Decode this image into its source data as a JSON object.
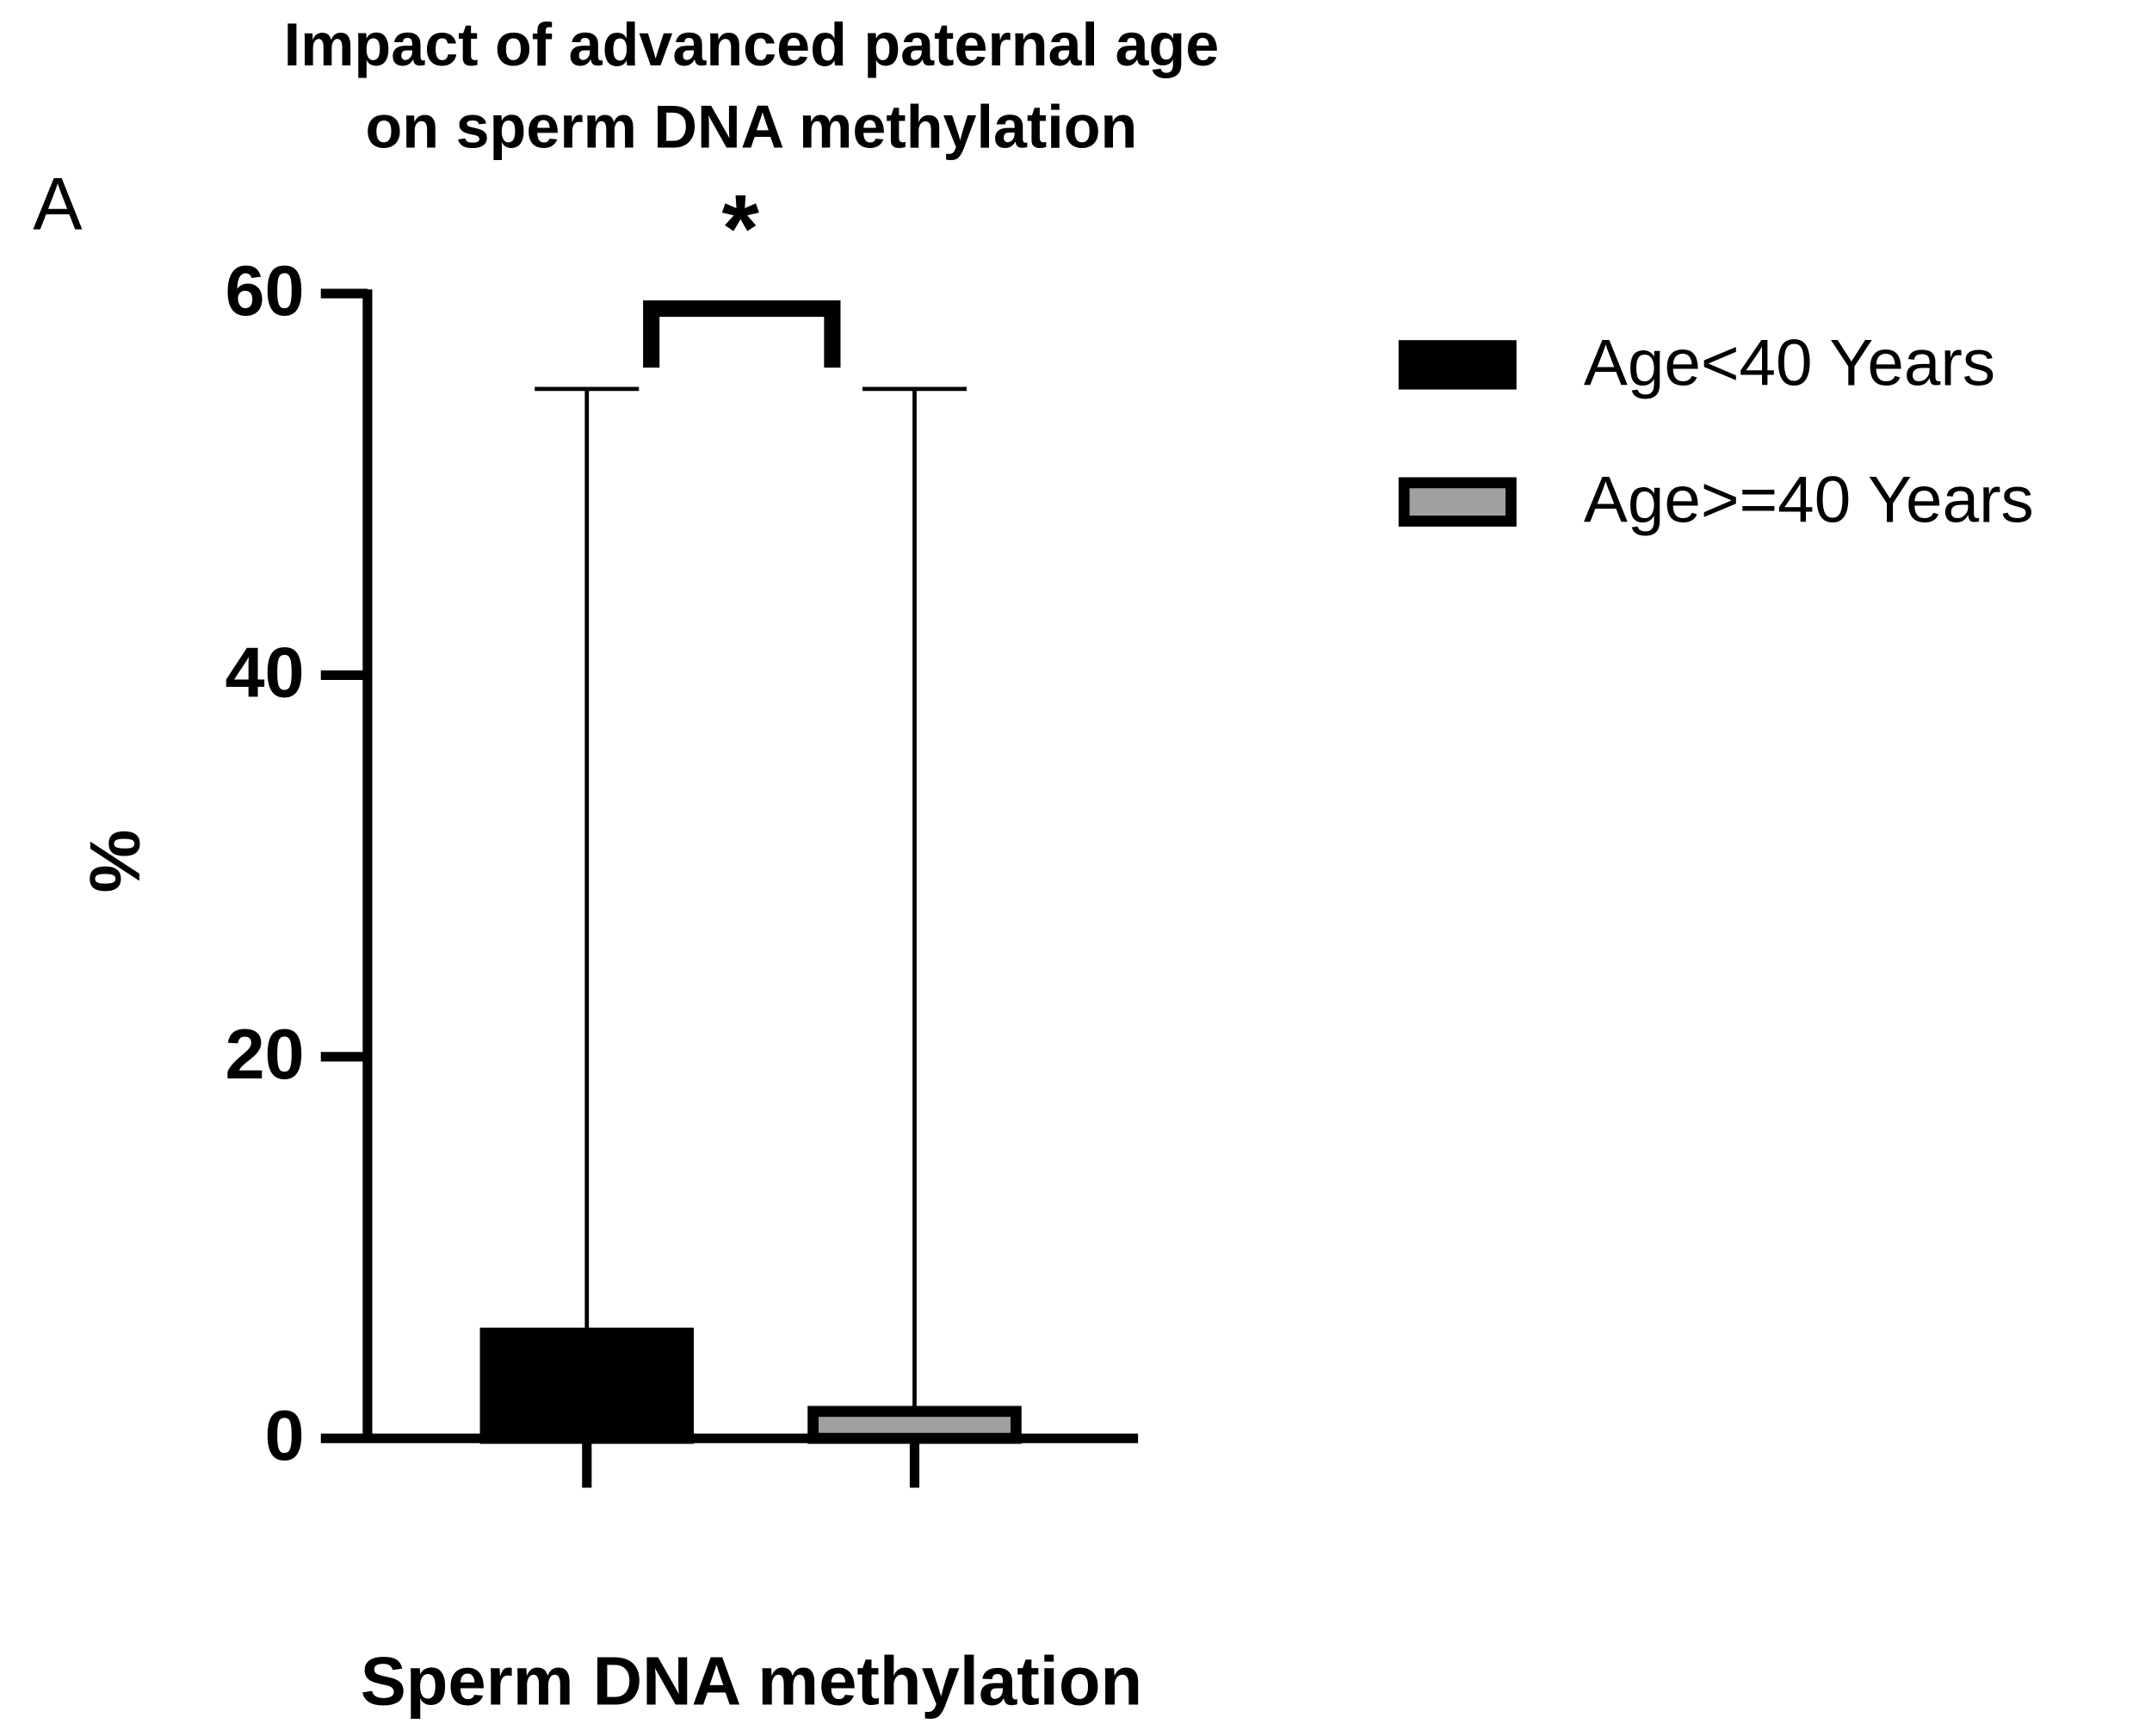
{
  "chart_data": {
    "type": "bar",
    "title": [
      "Impact of advanced paternal age",
      "on sperm DNA methylation"
    ],
    "panel_label": "A",
    "significance": "*",
    "y_label": "%",
    "x_label": "Sperm DNA methylation",
    "categories": [
      null
    ],
    "series": [
      {
        "name": "Age<40 Years",
        "color": "#000000",
        "edgecolor": "#000000",
        "values": [
          5.8
        ],
        "errors": [
          49.2
        ]
      },
      {
        "name": "Age>=40 Years",
        "color": "#a0a0a0",
        "edgecolor": "#000000",
        "values": [
          1.7
        ],
        "errors": [
          53.3
        ]
      }
    ],
    "ylim": [
      0,
      60
    ],
    "yticks": [
      0,
      20,
      40,
      60
    ],
    "grid": false,
    "legend": "right"
  }
}
